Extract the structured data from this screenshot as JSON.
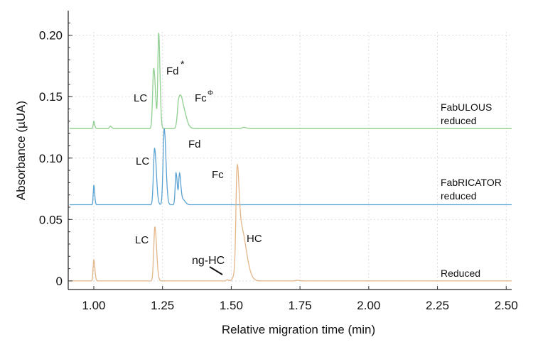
{
  "chart_data": {
    "type": "line",
    "title": "",
    "xlabel": "Relative migration time (min)",
    "ylabel": "Absorbance (µUA)",
    "xlim": [
      0.907,
      2.52
    ],
    "ylim": [
      -0.007,
      0.22
    ],
    "xticks": [
      1.0,
      1.25,
      1.5,
      1.75,
      2.0,
      2.25,
      2.5
    ],
    "xtick_labels": [
      "1.00",
      "1.25",
      "1.50",
      "1.75",
      "2.00",
      "2.25",
      "2.50"
    ],
    "yticks": [
      0,
      0.05,
      0.1,
      0.15,
      0.2
    ],
    "ytick_labels": [
      "0",
      "0.05",
      "0.10",
      "0.15",
      "0.20"
    ],
    "grid": true,
    "series": [
      {
        "name": "FabULOUS reduced",
        "label_lines": [
          "FabULOUS",
          "reduced"
        ],
        "color": "#8fcf8f",
        "baseline": 0.124,
        "peaks": [
          {
            "x": 1.0,
            "height": 0.006,
            "width": 0.002
          },
          {
            "x": 1.06,
            "height": 0.002,
            "width": 0.003
          },
          {
            "x": 1.218,
            "height": 0.049,
            "width": 0.004
          },
          {
            "x": 1.236,
            "height": 0.077,
            "width": 0.003
          },
          {
            "x": 1.309,
            "height": 0.02,
            "width": 0.005
          },
          {
            "x": 1.322,
            "height": 0.018,
            "width": 0.008
          },
          {
            "x": 1.545,
            "height": 0.001,
            "width": 0.006
          }
        ],
        "annotations": [
          {
            "text": "LC",
            "x": 1.22
          },
          {
            "text": "Fd",
            "sup": "*",
            "x": 1.24
          },
          {
            "text": "Fc",
            "sup": "Φ",
            "x": 1.32
          }
        ]
      },
      {
        "name": "FabRICATOR reduced",
        "label_lines": [
          "FabRICATOR",
          "reduced"
        ],
        "color": "#5aa2d2",
        "baseline": 0.062,
        "peaks": [
          {
            "x": 1.0,
            "height": 0.016,
            "width": 0.002
          },
          {
            "x": 1.221,
            "height": 0.046,
            "width": 0.004
          },
          {
            "x": 1.256,
            "height": 0.062,
            "width": 0.004
          },
          {
            "x": 1.299,
            "height": 0.026,
            "width": 0.003
          },
          {
            "x": 1.312,
            "height": 0.025,
            "width": 0.003
          },
          {
            "x": 1.325,
            "height": 0.004,
            "width": 0.005
          }
        ],
        "annotations": [
          {
            "text": "LC",
            "x": 1.22
          },
          {
            "text": "Fd",
            "x": 1.26
          },
          {
            "text": "Fc",
            "x": 1.31
          }
        ]
      },
      {
        "name": "Reduced",
        "label_lines": [
          "Reduced"
        ],
        "color": "#e3b68a",
        "baseline": 0.0,
        "peaks": [
          {
            "x": 1.0,
            "height": 0.017,
            "width": 0.0025
          },
          {
            "x": 1.222,
            "height": 0.044,
            "width": 0.004
          },
          {
            "x": 1.485,
            "height": 0.001,
            "width": 0.003
          },
          {
            "x": 1.521,
            "height": 0.068,
            "width": 0.004
          },
          {
            "x": 1.534,
            "height": 0.045,
            "width": 0.012
          },
          {
            "x": 1.74,
            "height": 0.0005,
            "width": 0.006
          }
        ],
        "annotations": [
          {
            "text": "LC",
            "x": 1.22
          },
          {
            "text": "ng-HC",
            "x": 1.48
          },
          {
            "text": "HC",
            "x": 1.53
          }
        ]
      }
    ]
  }
}
